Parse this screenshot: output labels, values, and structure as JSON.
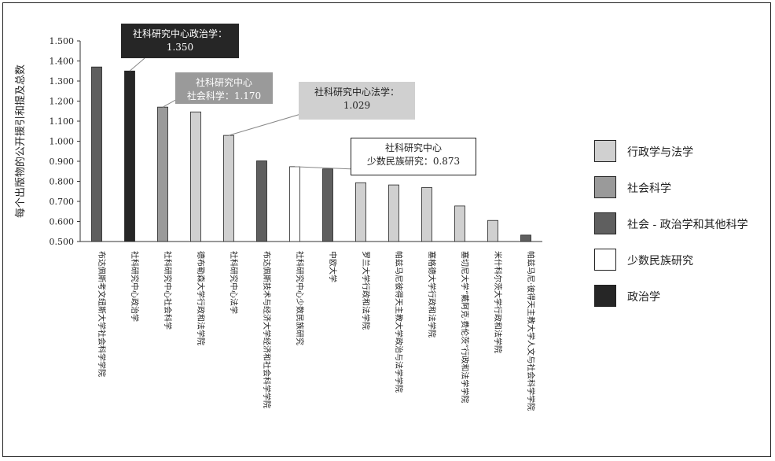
{
  "chart_data": {
    "type": "bar",
    "ylabel": "每个出版物的公开援引和提及总数",
    "ylim": [
      0.5,
      1.5
    ],
    "yticks": [
      "0.500",
      "0.600",
      "0.700",
      "0.800",
      "0.900",
      "1.000",
      "1.100",
      "1.200",
      "1.300",
      "1.400",
      "1.500"
    ],
    "grid": false,
    "legend_position": "right",
    "categories": [
      "布达佩斯考文纽斯大学社会科学学院",
      "社科研究中心政治学",
      "社科研究中心社会科学",
      "德布勒森大学行政和法学院",
      "社科研究中心法学",
      "布达佩斯技术与经济大学经济和社会科学学院",
      "社科研究中心少数民族研究",
      "中欧大学",
      "罗兰大学行政和法学院",
      "帕兹马尼彼得天主教大学政治与法学学院",
      "塞格德大学行政和法学院",
      "塞切尼大学“戴阿克·费伦茨”行政和法学学院",
      "米什科尔茨大学行政和法学院",
      "帕兹马尼·彼得天主教大学人文与社会科学学院"
    ],
    "values": [
      1.37,
      1.35,
      1.17,
      1.146,
      1.029,
      0.902,
      0.873,
      0.862,
      0.793,
      0.782,
      0.769,
      0.677,
      0.605,
      0.532
    ],
    "groups": [
      "socpol",
      "pol",
      "soc",
      "law",
      "law",
      "socpol",
      "min",
      "socpol",
      "law",
      "law",
      "law",
      "law",
      "law",
      "socpol"
    ],
    "legend": [
      {
        "key": "law",
        "label": "行政学与法学",
        "color": "#d0d0d0"
      },
      {
        "key": "soc",
        "label": "社会科学",
        "color": "#9a9a9a"
      },
      {
        "key": "socpol",
        "label": "社会 - 政治学和其他科学",
        "color": "#5f5f5f"
      },
      {
        "key": "min",
        "label": "少数民族研究",
        "color": "#ffffff"
      },
      {
        "key": "pol",
        "label": "政治学",
        "color": "#262626"
      }
    ],
    "annotations": [
      {
        "lines": [
          "社科研究中心政治学：",
          "1.350"
        ],
        "target_index": 1,
        "fill": "#262626",
        "text_color": "#ffffff"
      },
      {
        "lines": [
          "社科研究中心",
          "社会科学：1.170"
        ],
        "target_index": 2,
        "fill": "#9a9a9a",
        "text_color": "#ffffff"
      },
      {
        "lines": [
          "社科研究中心法学：",
          "1.029"
        ],
        "target_index": 4,
        "fill": "#d0d0d0",
        "text_color": "#222222"
      },
      {
        "lines": [
          "社科研究中心",
          "少数民族研究：0.873"
        ],
        "target_index": 6,
        "fill": "#ffffff",
        "text_color": "#222222"
      }
    ]
  }
}
